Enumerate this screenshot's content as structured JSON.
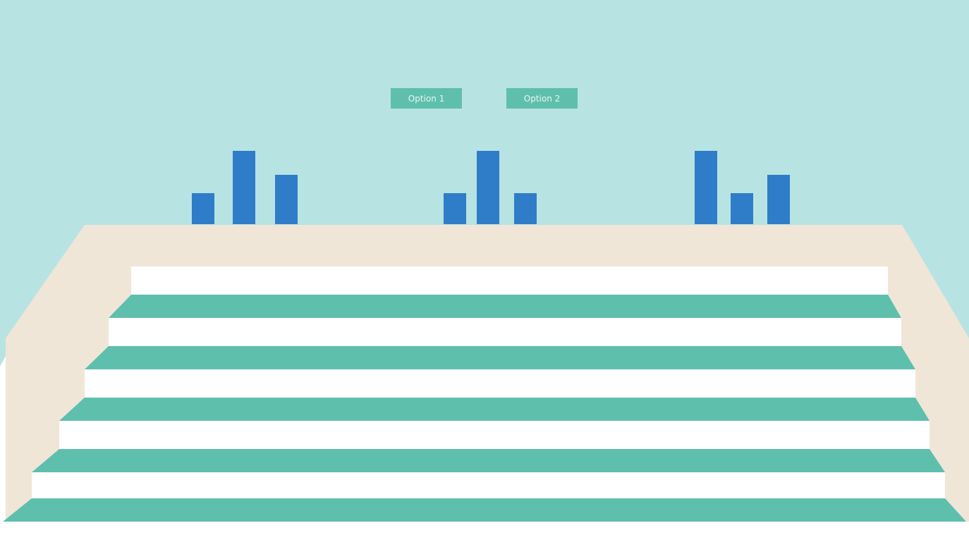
{
  "colors": {
    "sky": "#b8e3e3",
    "wall": "#efe6d8",
    "stair_tread": "#5fbfad",
    "stair_riser": "#ffffff",
    "bar": "#2f7dc8",
    "button_bg": "#5fbfad",
    "button_text": "#e8f6f2"
  },
  "options": [
    {
      "label": "Option 1"
    },
    {
      "label": "Option 2"
    }
  ],
  "bar_groups": [
    {
      "relative_heights": [
        0.42,
        1.0,
        0.67
      ]
    },
    {
      "relative_heights": [
        0.42,
        1.0,
        0.42
      ]
    },
    {
      "relative_heights": [
        1.0,
        0.42,
        0.67
      ]
    }
  ],
  "stairs": {
    "step_count": 5
  }
}
